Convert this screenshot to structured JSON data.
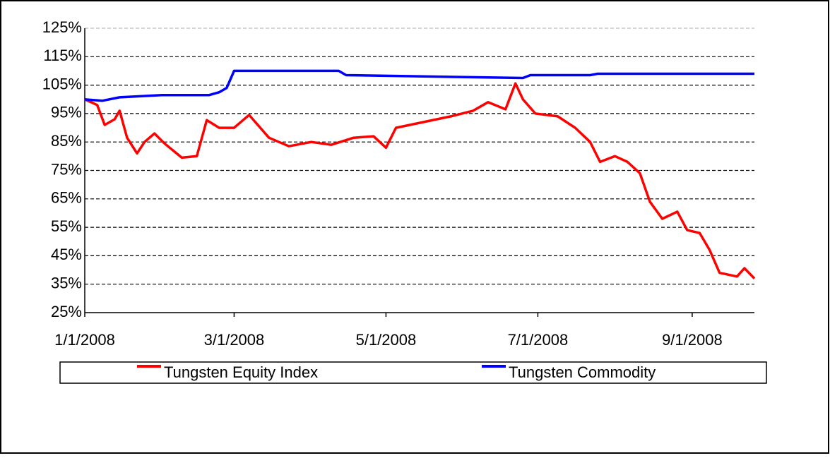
{
  "chart_data": {
    "type": "line",
    "xlim": [
      "1/1/2008",
      "9/26/2008"
    ],
    "xticks": [
      "1/1/2008",
      "3/1/2008",
      "5/1/2008",
      "7/1/2008",
      "9/1/2008"
    ],
    "ylim": [
      25,
      125
    ],
    "yticks": [
      {
        "value": 25,
        "label": "25%"
      },
      {
        "value": 35,
        "label": "35%"
      },
      {
        "value": 45,
        "label": "45%"
      },
      {
        "value": 55,
        "label": "55%"
      },
      {
        "value": 65,
        "label": "65%"
      },
      {
        "value": 75,
        "label": "75%"
      },
      {
        "value": 85,
        "label": "85%"
      },
      {
        "value": 95,
        "label": "95%"
      },
      {
        "value": 105,
        "label": "105%"
      },
      {
        "value": 115,
        "label": "115%"
      },
      {
        "value": 125,
        "label": "125%"
      }
    ],
    "grid": true,
    "legend": "bottom",
    "series": [
      {
        "name": "Tungsten Equity Index",
        "color": "#ff0000",
        "x": [
          "1/1/2008",
          "1/6/2008",
          "1/9/2008",
          "1/13/2008",
          "1/15/2008",
          "1/18/2008",
          "1/22/2008",
          "1/25/2008",
          "1/29/2008",
          "2/2/2008",
          "2/9/2008",
          "2/15/2008",
          "2/19/2008",
          "2/24/2008",
          "3/1/2008",
          "3/7/2008",
          "3/15/2008",
          "3/23/2008",
          "4/1/2008",
          "4/9/2008",
          "4/18/2008",
          "4/26/2008",
          "5/1/2008",
          "5/5/2008",
          "5/16/2008",
          "5/27/2008",
          "6/5/2008",
          "6/11/2008",
          "6/18/2008",
          "6/22/2008",
          "6/25/2008",
          "6/30/2008",
          "7/9/2008",
          "7/16/2008",
          "7/22/2008",
          "7/26/2008",
          "8/1/2008",
          "8/6/2008",
          "8/11/2008",
          "8/15/2008",
          "8/20/2008",
          "8/26/2008",
          "8/30/2008",
          "9/4/2008",
          "9/8/2008",
          "9/12/2008",
          "9/19/2008",
          "9/22/2008",
          "9/26/2008"
        ],
        "values": [
          100,
          98,
          91,
          93,
          96,
          86.5,
          81,
          85,
          88,
          84.5,
          79.5,
          80,
          92.7,
          90,
          90,
          94.5,
          86.5,
          83.5,
          85,
          84,
          86.5,
          87,
          83,
          90,
          92,
          94,
          96,
          99,
          96.5,
          105.6,
          100,
          95,
          94,
          90,
          85,
          78,
          80,
          78,
          74,
          64,
          58,
          60.5,
          54,
          53,
          47,
          39,
          37.7,
          40.6,
          37
        ]
      },
      {
        "name": "Tungsten Commodity",
        "color": "#0000ff",
        "x": [
          "1/1/2008",
          "1/8/2008",
          "1/15/2008",
          "2/1/2008",
          "2/20/2008",
          "2/24/2008",
          "2/27/2008",
          "3/1/2008",
          "4/12/2008",
          "4/15/2008",
          "6/25/2008",
          "6/28/2008",
          "7/22/2008",
          "7/25/2008",
          "9/26/2008"
        ],
        "values": [
          100,
          99.5,
          100.7,
          101.5,
          101.5,
          102.5,
          104,
          110,
          110,
          108.5,
          107.5,
          108.5,
          108.5,
          109,
          109
        ]
      }
    ]
  }
}
